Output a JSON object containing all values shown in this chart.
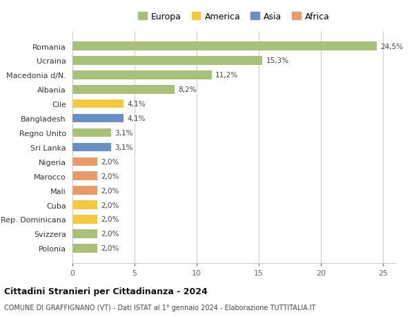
{
  "categories": [
    "Romania",
    "Ucraina",
    "Macedonia d/N.",
    "Albania",
    "Cile",
    "Bangladesh",
    "Regno Unito",
    "Sri Lanka",
    "Nigeria",
    "Marocco",
    "Mali",
    "Cuba",
    "Rep. Dominicana",
    "Svizzera",
    "Polonia"
  ],
  "values": [
    24.5,
    15.3,
    11.2,
    8.2,
    4.1,
    4.1,
    3.1,
    3.1,
    2.0,
    2.0,
    2.0,
    2.0,
    2.0,
    2.0,
    2.0
  ],
  "labels": [
    "24,5%",
    "15,3%",
    "11,2%",
    "8,2%",
    "4,1%",
    "4,1%",
    "3,1%",
    "3,1%",
    "2,0%",
    "2,0%",
    "2,0%",
    "2,0%",
    "2,0%",
    "2,0%",
    "2,0%"
  ],
  "colors": [
    "#a8c07a",
    "#a8c07a",
    "#a8c07a",
    "#a8c07a",
    "#f5c842",
    "#6b8fc2",
    "#a8c07a",
    "#6b8fc2",
    "#e89a6a",
    "#e89a6a",
    "#e89a6a",
    "#f5c842",
    "#f5c842",
    "#a8c07a",
    "#a8c07a"
  ],
  "legend": {
    "Europa": "#a8c07a",
    "America": "#f5c842",
    "Asia": "#6b8fc2",
    "Africa": "#e89a6a"
  },
  "xlim": [
    0,
    26
  ],
  "xticks": [
    0,
    5,
    10,
    15,
    20,
    25
  ],
  "title": "Cittadini Stranieri per Cittadinanza - 2024",
  "subtitle": "COMUNE DI GRAFFIGNANO (VT) - Dati ISTAT al 1° gennaio 2024 - Elaborazione TUTTITALIA.IT",
  "background_color": "#ffffff",
  "grid_color": "#cccccc",
  "bar_height": 0.6
}
